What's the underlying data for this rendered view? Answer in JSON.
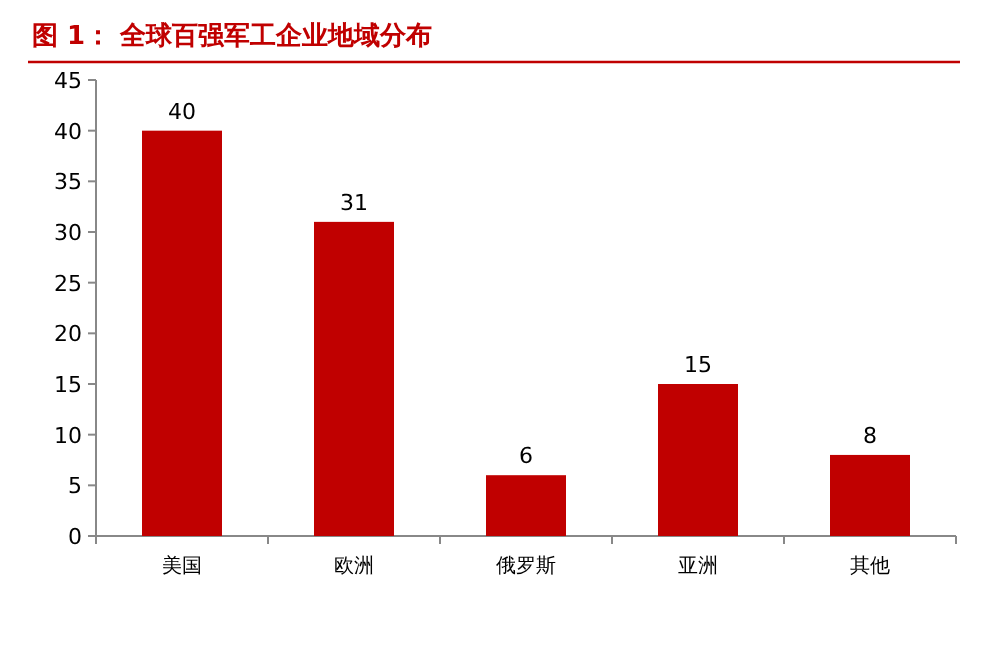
{
  "chart_data": {
    "type": "bar",
    "title": "图 1：  全球百强军工企业地域分布",
    "categories": [
      "美国",
      "欧洲",
      "俄罗斯",
      "亚洲",
      "其他"
    ],
    "values": [
      40,
      31,
      6,
      15,
      8
    ],
    "color": "#c00000",
    "ylim": [
      0,
      45
    ],
    "yticks": [
      0,
      5,
      10,
      15,
      20,
      25,
      30,
      35,
      40,
      45
    ],
    "data_labels": true
  }
}
